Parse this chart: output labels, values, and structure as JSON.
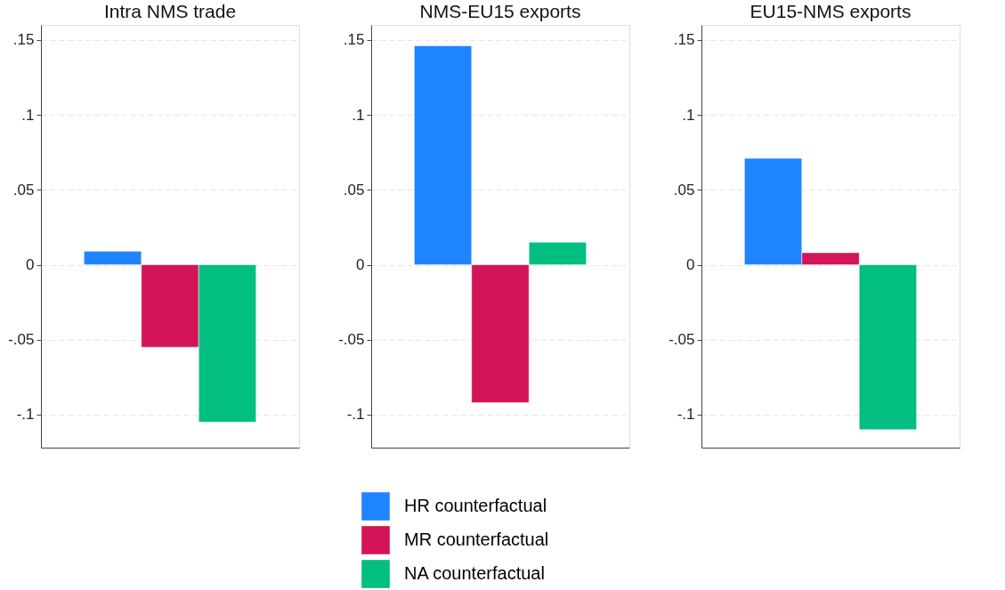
{
  "chart_data": [
    {
      "type": "bar",
      "title": "Intra NMS trade",
      "categories": [
        null
      ],
      "ylim": [
        -0.122,
        0.16
      ],
      "yticks": [
        {
          "value": -0.1,
          "label": "-.1"
        },
        {
          "value": -0.05,
          "label": "-.05"
        },
        {
          "value": 0,
          "label": "0"
        },
        {
          "value": 0.05,
          "label": ".05"
        },
        {
          "value": 0.1,
          "label": ".1"
        },
        {
          "value": 0.15,
          "label": ".15"
        }
      ],
      "grid": "y",
      "tick_labels": "y",
      "legend": "bottom",
      "series": [
        {
          "name": "HR counterfactual",
          "color": "#1e85ff",
          "values": [
            0.009
          ]
        },
        {
          "name": "MR counterfactual",
          "color": "#d41359",
          "values": [
            -0.055
          ]
        },
        {
          "name": "NA counterfactual",
          "color": "#02bf81",
          "values": [
            -0.105
          ]
        }
      ]
    },
    {
      "type": "bar",
      "title": "NMS-EU15 exports",
      "categories": [
        null
      ],
      "ylim": [
        -0.122,
        0.16
      ],
      "yticks": [
        {
          "value": -0.1,
          "label": "-.1"
        },
        {
          "value": -0.05,
          "label": "-.05"
        },
        {
          "value": 0,
          "label": "0"
        },
        {
          "value": 0.05,
          "label": ".05"
        },
        {
          "value": 0.1,
          "label": ".1"
        },
        {
          "value": 0.15,
          "label": ".15"
        }
      ],
      "grid": "y",
      "tick_labels": "y",
      "legend": "bottom",
      "series": [
        {
          "name": "HR counterfactual",
          "color": "#1e85ff",
          "values": [
            0.146
          ]
        },
        {
          "name": "MR counterfactual",
          "color": "#d41359",
          "values": [
            -0.092
          ]
        },
        {
          "name": "NA counterfactual",
          "color": "#02bf81",
          "values": [
            0.015
          ]
        }
      ]
    },
    {
      "type": "bar",
      "title": "EU15-NMS exports",
      "categories": [
        null
      ],
      "ylim": [
        -0.122,
        0.16
      ],
      "yticks": [
        {
          "value": -0.1,
          "label": "-.1"
        },
        {
          "value": -0.05,
          "label": "-.05"
        },
        {
          "value": 0,
          "label": "0"
        },
        {
          "value": 0.05,
          "label": ".05"
        },
        {
          "value": 0.1,
          "label": ".1"
        },
        {
          "value": 0.15,
          "label": ".15"
        }
      ],
      "grid": "y",
      "tick_labels": "y",
      "legend": "bottom",
      "series": [
        {
          "name": "HR counterfactual",
          "color": "#1e85ff",
          "values": [
            0.071
          ]
        },
        {
          "name": "MR counterfactual",
          "color": "#d41359",
          "values": [
            0.008
          ]
        },
        {
          "name": "NA counterfactual",
          "color": "#02bf81",
          "values": [
            -0.11
          ]
        }
      ]
    }
  ]
}
